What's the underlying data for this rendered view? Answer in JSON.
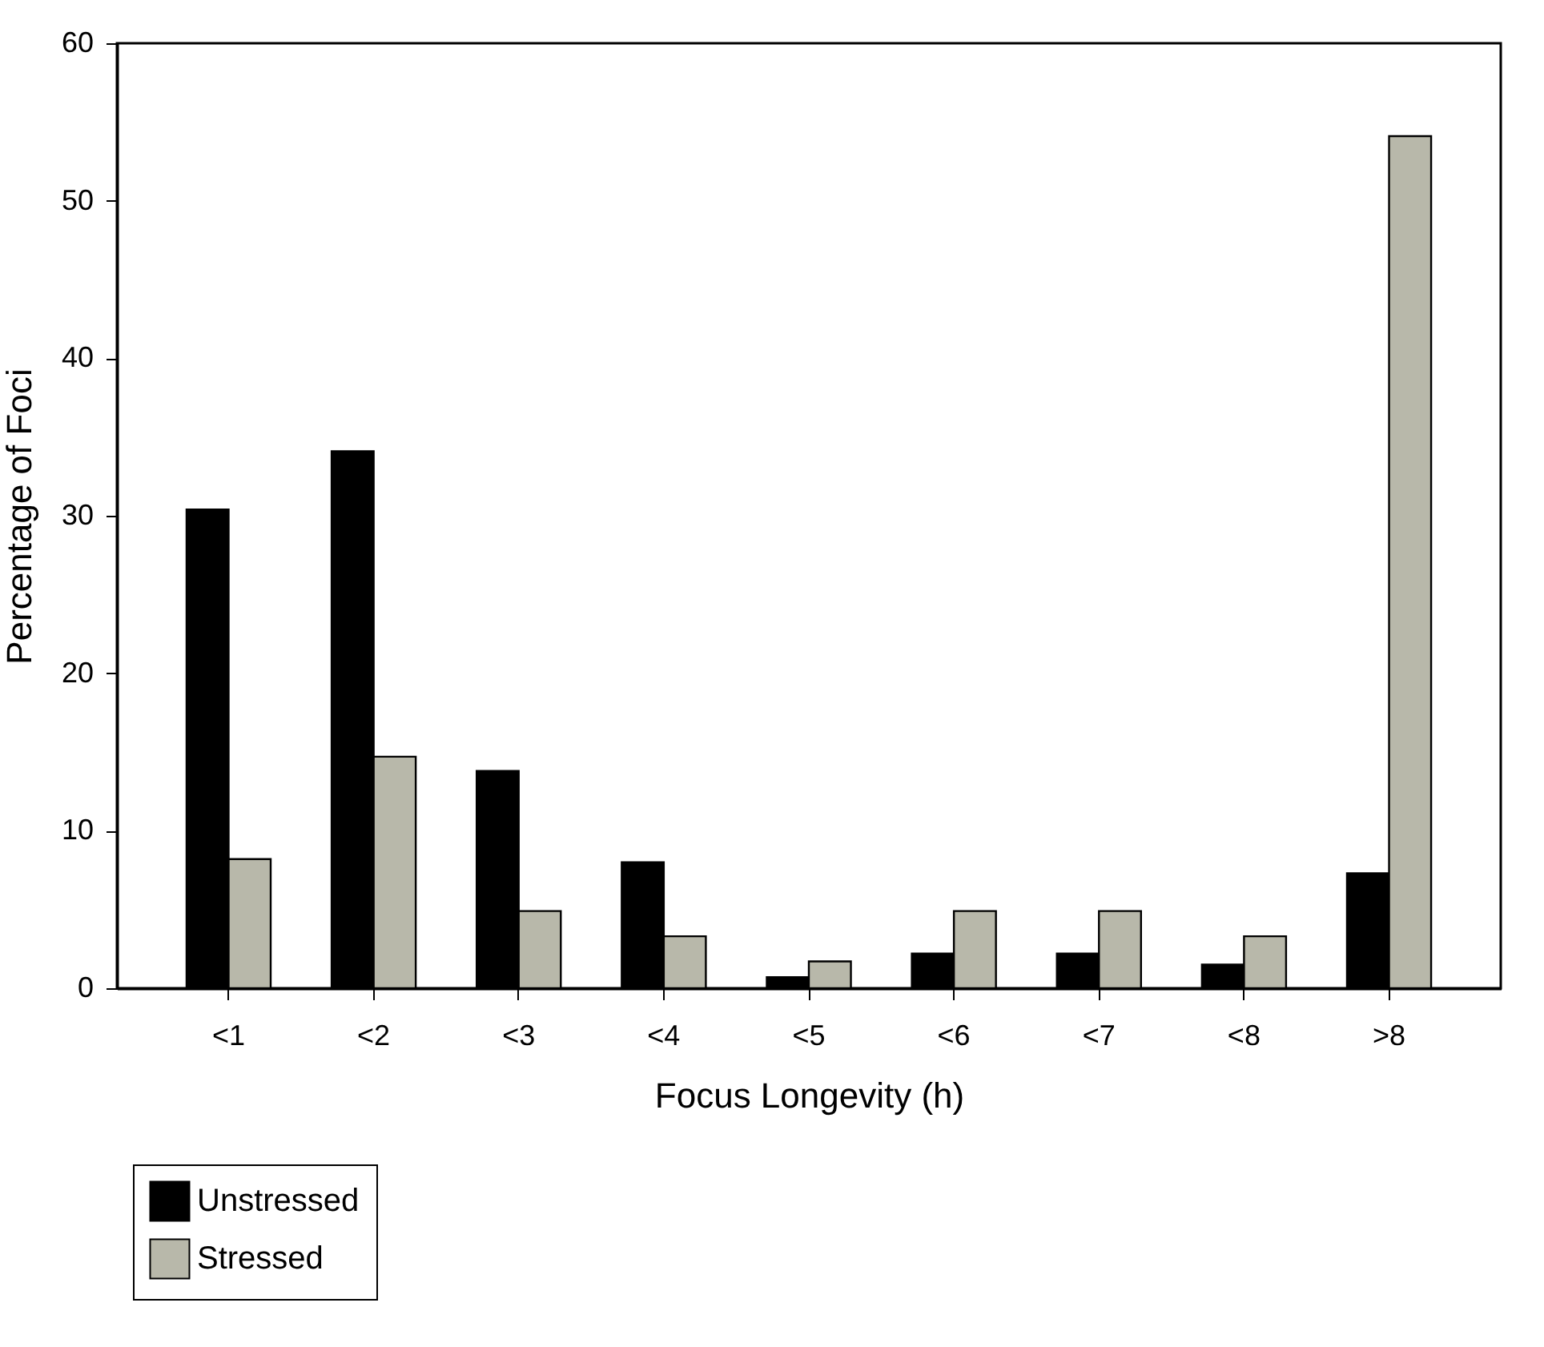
{
  "chart_data": {
    "type": "bar",
    "xlabel": "Focus Longevity (h)",
    "ylabel": "Percentage of Foci",
    "categories": [
      "<1",
      "<2",
      "<3",
      "<4",
      "<5",
      "<6",
      "<7",
      "<8",
      ">8"
    ],
    "series": [
      {
        "name": "Unstressed",
        "color": "#000000",
        "values": [
          30.4,
          34.1,
          13.8,
          8.0,
          0.7,
          2.2,
          2.2,
          1.5,
          7.3
        ]
      },
      {
        "name": "Stressed",
        "color": "#b8b8aa",
        "values": [
          8.2,
          14.7,
          4.9,
          3.3,
          1.7,
          4.9,
          4.9,
          3.3,
          54.1
        ]
      }
    ],
    "ylim": [
      0,
      60
    ],
    "yticks": [
      0,
      10,
      20,
      30,
      40,
      50,
      60
    ],
    "legend": "bottom left",
    "grid": false
  }
}
